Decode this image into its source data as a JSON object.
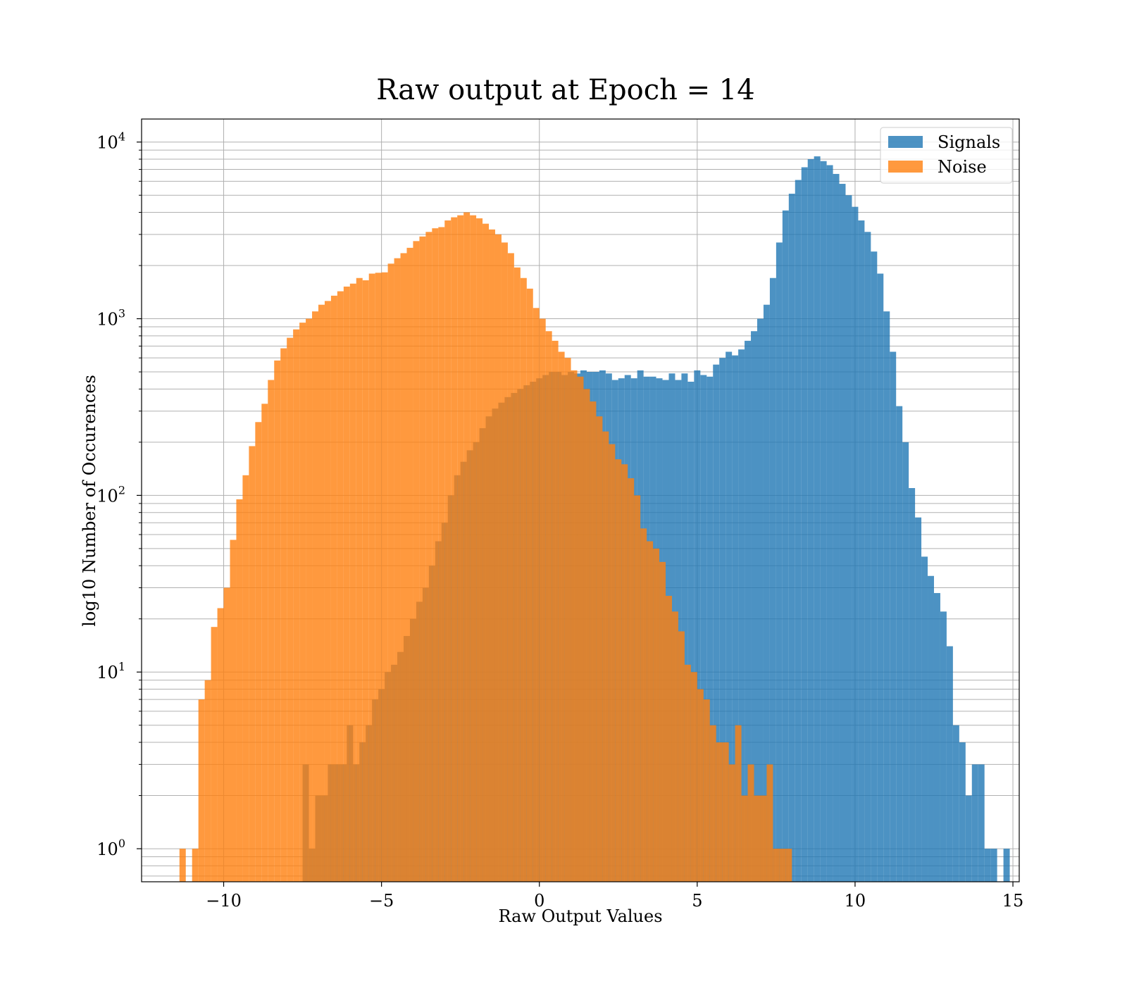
{
  "chart_data": {
    "type": "histogram",
    "title": "Raw output at Epoch = 14",
    "xlabel": "Raw Output Values",
    "ylabel": "log10 Number of Occurences",
    "xlim": [
      -12.6,
      15.2
    ],
    "ylim": [
      0.65,
      13500
    ],
    "yscale": "log",
    "grid": true,
    "legend_position": "top-right",
    "x_ticks": [
      {
        "value": -10,
        "label": "−10"
      },
      {
        "value": -5,
        "label": "−5"
      },
      {
        "value": 0,
        "label": "0"
      },
      {
        "value": 5,
        "label": "5"
      },
      {
        "value": 10,
        "label": "10"
      },
      {
        "value": 15,
        "label": "15"
      }
    ],
    "y_ticks": [
      {
        "value": 1,
        "base": "10",
        "exp": "0"
      },
      {
        "value": 10,
        "base": "10",
        "exp": "1"
      },
      {
        "value": 100,
        "base": "10",
        "exp": "2"
      },
      {
        "value": 1000,
        "base": "10",
        "exp": "3"
      },
      {
        "value": 10000,
        "base": "10",
        "exp": "4"
      }
    ],
    "series": [
      {
        "name": "Signals",
        "color": "#1f77b4",
        "opacity": 0.8,
        "bin_start": -7.5,
        "bin_width": 0.2,
        "counts": [
          3,
          1,
          2,
          2,
          3,
          3,
          3,
          5,
          3,
          4,
          5,
          7,
          8,
          10,
          11,
          13,
          16,
          20,
          25,
          30,
          40,
          55,
          70,
          100,
          130,
          155,
          180,
          200,
          240,
          280,
          310,
          335,
          360,
          380,
          400,
          420,
          440,
          460,
          480,
          500,
          500,
          480,
          500,
          490,
          510,
          500,
          500,
          510,
          490,
          450,
          460,
          480,
          460,
          510,
          470,
          470,
          460,
          450,
          490,
          450,
          490,
          440,
          510,
          480,
          470,
          550,
          600,
          650,
          620,
          670,
          750,
          850,
          1000,
          1200,
          1700,
          2700,
          4100,
          5100,
          6100,
          7200,
          8000,
          8300,
          7800,
          7400,
          6600,
          5800,
          5000,
          4300,
          3600,
          3100,
          2400,
          1800,
          1100,
          650,
          320,
          200,
          110,
          75,
          45,
          35,
          28,
          22,
          14,
          5,
          4,
          2,
          3,
          3,
          1,
          1,
          0,
          1
        ]
      },
      {
        "name": "Noise",
        "color": "#ff7f0e",
        "opacity": 0.8,
        "bin_start": -11.4,
        "bin_width": 0.2,
        "counts": [
          1,
          0,
          1,
          7,
          9,
          18,
          23,
          30,
          56,
          95,
          130,
          190,
          260,
          330,
          450,
          580,
          680,
          780,
          870,
          950,
          1000,
          1100,
          1200,
          1260,
          1350,
          1430,
          1520,
          1580,
          1700,
          1650,
          1800,
          1820,
          1830,
          2050,
          2200,
          2350,
          2520,
          2750,
          2920,
          3100,
          3250,
          3300,
          3600,
          3750,
          3850,
          4000,
          3850,
          3700,
          3450,
          3200,
          3000,
          2700,
          2350,
          1950,
          1700,
          1480,
          1150,
          1000,
          850,
          750,
          650,
          600,
          510,
          470,
          400,
          340,
          280,
          230,
          195,
          160,
          150,
          125,
          100,
          65,
          55,
          50,
          42,
          27,
          22,
          17,
          11,
          10,
          8,
          7,
          5,
          4,
          4,
          3,
          5,
          2,
          3,
          2,
          2,
          3,
          1,
          1,
          1
        ]
      }
    ]
  }
}
